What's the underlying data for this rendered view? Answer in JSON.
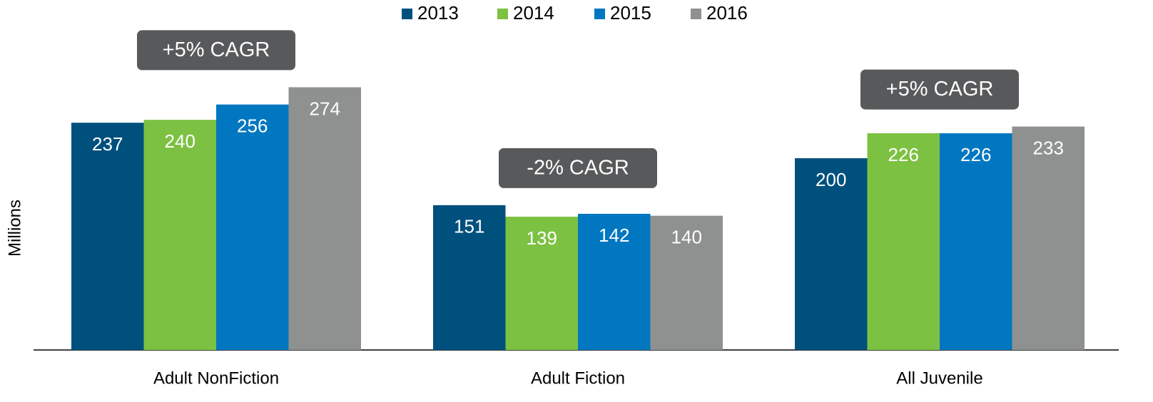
{
  "chart_data": {
    "type": "bar",
    "categories": [
      "Adult NonFiction",
      "Adult Fiction",
      "All Juvenile"
    ],
    "series": [
      {
        "name": "2013",
        "color": "#00507d",
        "values": [
          237,
          151,
          200
        ]
      },
      {
        "name": "2014",
        "color": "#7dc142",
        "values": [
          240,
          139,
          226
        ]
      },
      {
        "name": "2015",
        "color": "#0077c0",
        "values": [
          256,
          142,
          226
        ]
      },
      {
        "name": "2016",
        "color": "#8f9190",
        "values": [
          274,
          140,
          233
        ]
      }
    ],
    "annotations": [
      "+5% CAGR",
      "-2% CAGR",
      "+5% CAGR"
    ],
    "y_label": "Millions",
    "ylim": [
      0,
      365
    ],
    "legend": "top"
  }
}
